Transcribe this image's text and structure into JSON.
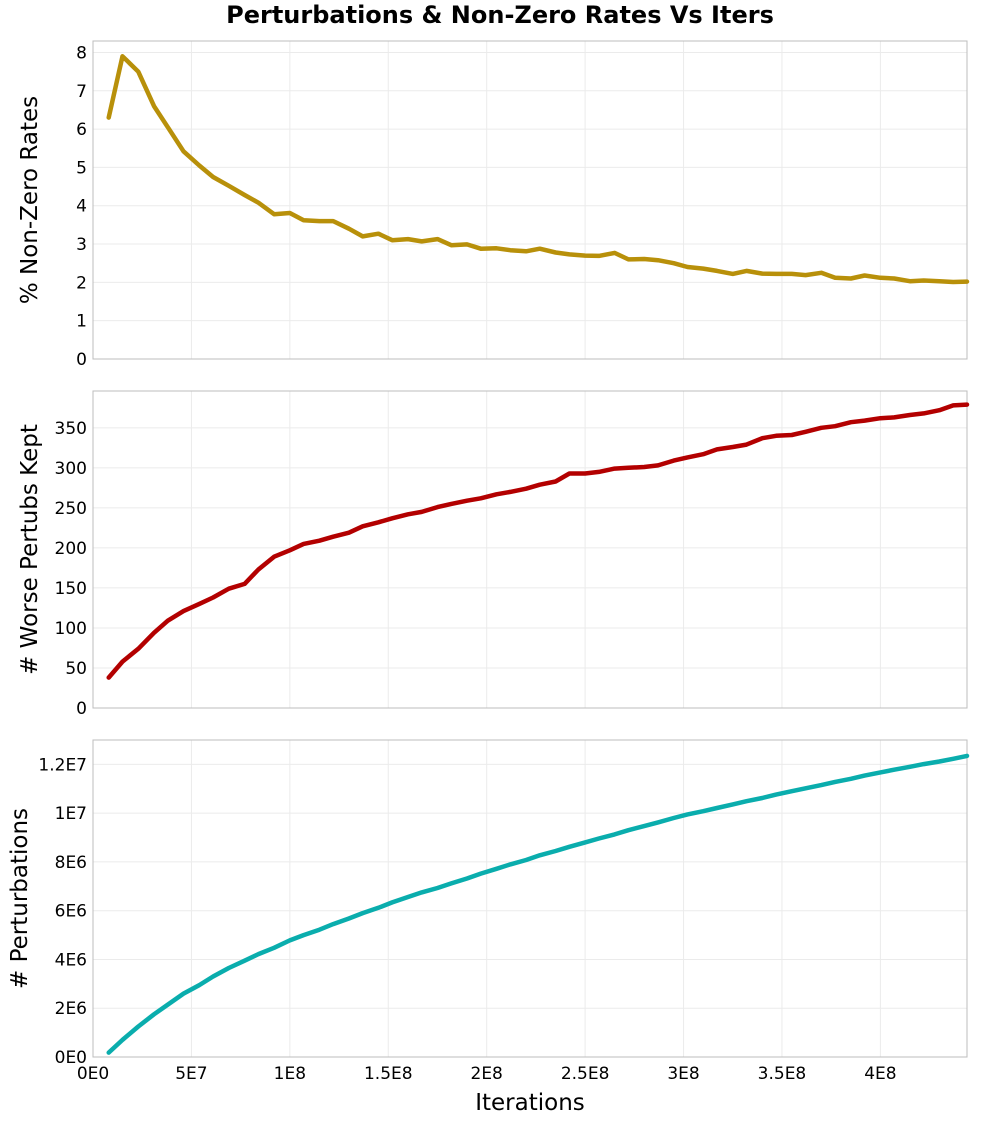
{
  "chart_data": {
    "type": "line",
    "title": "Perturbations & Non-Zero Rates Vs Iters",
    "xlabel": "Iterations",
    "xlim": [
      0,
      444000000
    ],
    "x_ticks": [
      {
        "value": 0,
        "label": "0E0"
      },
      {
        "value": 50000000,
        "label": "5E7"
      },
      {
        "value": 100000000,
        "label": "1E8"
      },
      {
        "value": 150000000,
        "label": "1.5E8"
      },
      {
        "value": 200000000,
        "label": "2E8"
      },
      {
        "value": 250000000,
        "label": "2.5E8"
      },
      {
        "value": 300000000,
        "label": "3E8"
      },
      {
        "value": 350000000,
        "label": "3.5E8"
      },
      {
        "value": 400000000,
        "label": "4E8"
      }
    ],
    "grid": true,
    "x": [
      8000000,
      15000000,
      23000000,
      31000000,
      38000000,
      46000000,
      54000000,
      61000000,
      69000000,
      77000000,
      84000000,
      92000000,
      100000000,
      107000000,
      115000000,
      122000000,
      130000000,
      137000000,
      145000000,
      152000000,
      160000000,
      167000000,
      175000000,
      182000000,
      190000000,
      197000000,
      205000000,
      212000000,
      220000000,
      227000000,
      235000000,
      242000000,
      250000000,
      257000000,
      265000000,
      272000000,
      280000000,
      287000000,
      295000000,
      302000000,
      310000000,
      317000000,
      325000000,
      332000000,
      340000000,
      347000000,
      355000000,
      362000000,
      370000000,
      377000000,
      385000000,
      392000000,
      400000000,
      407000000,
      415000000,
      422000000,
      430000000,
      437000000,
      444000000
    ],
    "panels": [
      {
        "ylabel": "% Non-Zero Rates",
        "ylim": [
          0,
          8.3
        ],
        "y_ticks": [
          {
            "value": 0,
            "label": "0"
          },
          {
            "value": 1,
            "label": "1"
          },
          {
            "value": 2,
            "label": "2"
          },
          {
            "value": 3,
            "label": "3"
          },
          {
            "value": 4,
            "label": "4"
          },
          {
            "value": 5,
            "label": "5"
          },
          {
            "value": 6,
            "label": "6"
          },
          {
            "value": 7,
            "label": "7"
          },
          {
            "value": 8,
            "label": "8"
          }
        ],
        "color": "#b8900a",
        "values": [
          6.3,
          7.9,
          7.5,
          6.6,
          6.05,
          5.42,
          5.05,
          4.75,
          4.52,
          4.28,
          4.08,
          3.78,
          3.81,
          3.62,
          3.6,
          3.6,
          3.4,
          3.2,
          3.27,
          3.1,
          3.13,
          3.07,
          3.13,
          2.97,
          2.99,
          2.88,
          2.89,
          2.84,
          2.81,
          2.88,
          2.78,
          2.73,
          2.7,
          2.69,
          2.77,
          2.6,
          2.61,
          2.58,
          2.5,
          2.4,
          2.36,
          2.3,
          2.22,
          2.3,
          2.23,
          2.22,
          2.22,
          2.19,
          2.25,
          2.12,
          2.1,
          2.18,
          2.12,
          2.1,
          2.03,
          2.05,
          2.03,
          2.01,
          2.02
        ]
      },
      {
        "ylabel": "# Worse Pertubs Kept",
        "ylim": [
          0,
          396
        ],
        "y_ticks": [
          {
            "value": 0,
            "label": "0"
          },
          {
            "value": 50,
            "label": "50"
          },
          {
            "value": 100,
            "label": "100"
          },
          {
            "value": 150,
            "label": "150"
          },
          {
            "value": 200,
            "label": "200"
          },
          {
            "value": 250,
            "label": "250"
          },
          {
            "value": 300,
            "label": "300"
          },
          {
            "value": 350,
            "label": "350"
          }
        ],
        "color": "#b30000",
        "values": [
          38,
          58,
          74,
          94,
          109,
          121,
          130,
          138,
          149,
          155,
          173,
          189,
          197,
          205,
          209,
          214,
          219,
          227,
          232,
          237,
          242,
          245,
          251,
          255,
          259,
          262,
          267,
          270,
          274,
          279,
          283,
          293,
          293,
          295,
          299,
          300,
          301,
          303,
          309,
          313,
          317,
          323,
          326,
          329,
          337,
          340,
          341,
          345,
          350,
          352,
          357,
          359,
          362,
          363,
          366,
          368,
          372,
          378,
          379
        ]
      },
      {
        "ylabel": "# Perturbations",
        "ylim": [
          0,
          13000000
        ],
        "y_ticks": [
          {
            "value": 0,
            "label": "0E0"
          },
          {
            "value": 2000000,
            "label": "2E6"
          },
          {
            "value": 4000000,
            "label": "4E6"
          },
          {
            "value": 6000000,
            "label": "6E6"
          },
          {
            "value": 8000000,
            "label": "8E6"
          },
          {
            "value": 10000000,
            "label": "1E7"
          },
          {
            "value": 12000000,
            "label": "1.2E7"
          }
        ],
        "color": "#0aadad",
        "values": [
          180000,
          700000,
          1250000,
          1750000,
          2150000,
          2600000,
          2950000,
          3300000,
          3650000,
          3950000,
          4220000,
          4480000,
          4780000,
          5000000,
          5220000,
          5450000,
          5680000,
          5900000,
          6120000,
          6340000,
          6560000,
          6750000,
          6930000,
          7120000,
          7320000,
          7520000,
          7720000,
          7900000,
          8080000,
          8270000,
          8450000,
          8620000,
          8800000,
          8960000,
          9130000,
          9300000,
          9470000,
          9620000,
          9800000,
          9950000,
          10080000,
          10210000,
          10360000,
          10490000,
          10620000,
          10760000,
          10900000,
          11020000,
          11150000,
          11280000,
          11410000,
          11540000,
          11670000,
          11780000,
          11900000,
          12010000,
          12120000,
          12230000,
          12350000
        ]
      }
    ]
  }
}
